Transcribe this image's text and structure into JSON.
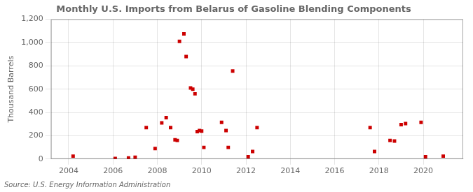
{
  "chart_data": {
    "type": "scatter",
    "title": "Monthly U.S. Imports from Belarus of Gasoline Blending Components",
    "ylabel": "Thousand Barrels",
    "annotations": [
      "Source: U.S. Energy Information Administration"
    ],
    "x": [
      2004.2,
      2006.1,
      2006.7,
      2007.0,
      2007.5,
      2007.9,
      2008.2,
      2008.4,
      2008.6,
      2008.8,
      2008.9,
      2009.0,
      2009.2,
      2009.3,
      2009.5,
      2009.6,
      2009.7,
      2009.8,
      2009.9,
      2010.0,
      2010.1,
      2010.9,
      2011.1,
      2011.2,
      2011.4,
      2012.1,
      2012.3,
      2012.5,
      2017.6,
      2017.8,
      2018.5,
      2018.7,
      2019.0,
      2019.2,
      2019.9,
      2020.1,
      2020.9
    ],
    "values": [
      25,
      5,
      10,
      15,
      270,
      90,
      310,
      355,
      270,
      165,
      160,
      1010,
      1075,
      880,
      610,
      600,
      560,
      235,
      245,
      240,
      100,
      315,
      245,
      100,
      755,
      20,
      65,
      270,
      270,
      65,
      160,
      155,
      295,
      305,
      315,
      20,
      25
    ],
    "color": "#cc0000",
    "marker": "square",
    "xlim": [
      2003.2,
      2021.8
    ],
    "xticks": [
      2004,
      2006,
      2008,
      2010,
      2012,
      2014,
      2016,
      2018,
      2020
    ],
    "ylim": [
      0,
      1200
    ],
    "yticks": [
      0,
      200,
      400,
      600,
      800,
      {
        "value": 1000,
        "label": "1,000"
      },
      {
        "value": 1200,
        "label": "1,200"
      }
    ],
    "grid": true
  }
}
